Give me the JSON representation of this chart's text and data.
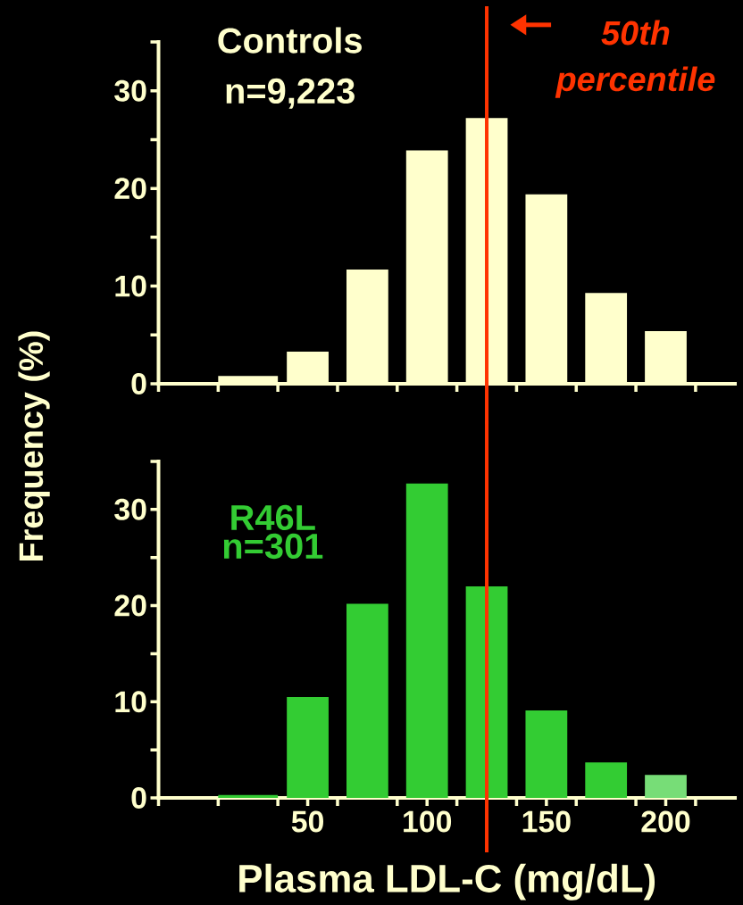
{
  "chart_data": [
    {
      "type": "histogram",
      "title": "Controls",
      "subtitle": "n=9,223",
      "ylabel": "Frequency (%)",
      "bins": [
        12.5,
        37.5,
        62.5,
        87.5,
        112.5,
        137.5,
        162.5,
        187.5,
        212.5
      ],
      "values": [
        0.8,
        3.3,
        11.7,
        23.9,
        27.2,
        19.4,
        9.3,
        5.4
      ],
      "color": "#ffffcc",
      "xlim": [
        -12.5,
        229
      ],
      "xticks": [
        {
          "value": -12.5,
          "label": null
        },
        {
          "value": 12.5,
          "label": null
        },
        {
          "value": 37.5,
          "label": null
        },
        {
          "value": 62.5,
          "label": null
        },
        {
          "value": 87.5,
          "label": null
        },
        {
          "value": 112.5,
          "label": null
        },
        {
          "value": 137.5,
          "label": null
        },
        {
          "value": 162.5,
          "label": null
        },
        {
          "value": 187.5,
          "label": null
        },
        {
          "value": 212.5,
          "label": null
        }
      ],
      "ylim": [
        0,
        35
      ],
      "yticks": [
        0,
        {
          "value": 5,
          "label": null
        },
        10,
        {
          "value": 15,
          "label": null
        },
        20,
        {
          "value": 25,
          "label": null
        },
        30,
        {
          "value": 35,
          "label": null
        }
      ],
      "tick_labels": "y",
      "ref_lines": [
        {
          "axis": "x",
          "value": 125,
          "label": "50th percentile",
          "color": "#ff3300"
        }
      ]
    },
    {
      "type": "histogram",
      "title": "R46L",
      "subtitle": "n=301",
      "xlabel": "Plasma LDL-C (mg/dL)",
      "bins": [
        12.5,
        37.5,
        62.5,
        87.5,
        112.5,
        137.5,
        162.5,
        187.5,
        212.5
      ],
      "values": [
        0.3,
        10.5,
        20.2,
        32.7,
        22.0,
        9.1,
        3.7,
        2.4
      ],
      "colors": [
        "#33cc33",
        "#33cc33",
        "#33cc33",
        "#33cc33",
        "#33cc33",
        "#33cc33",
        "#33cc33",
        "#77dd77"
      ],
      "xlim": [
        -12.5,
        229
      ],
      "xticks": [
        {
          "value": -12.5,
          "label": null
        },
        {
          "value": 12.5,
          "label": null
        },
        {
          "value": 37.5,
          "label": null
        },
        50,
        {
          "value": 62.5,
          "label": null
        },
        {
          "value": 87.5,
          "label": null
        },
        100,
        {
          "value": 112.5,
          "label": null
        },
        {
          "value": 137.5,
          "label": null
        },
        150,
        {
          "value": 162.5,
          "label": null
        },
        {
          "value": 187.5,
          "label": null
        },
        200,
        {
          "value": 212.5,
          "label": null
        }
      ],
      "ylim": [
        0,
        35
      ],
      "yticks": [
        0,
        {
          "value": 5,
          "label": null
        },
        10,
        {
          "value": 15,
          "label": null
        },
        20,
        {
          "value": 25,
          "label": null
        },
        30,
        {
          "value": 35,
          "label": null
        }
      ],
      "ref_lines": [
        {
          "axis": "x",
          "value": 125,
          "color": "#ff3300"
        }
      ]
    }
  ]
}
